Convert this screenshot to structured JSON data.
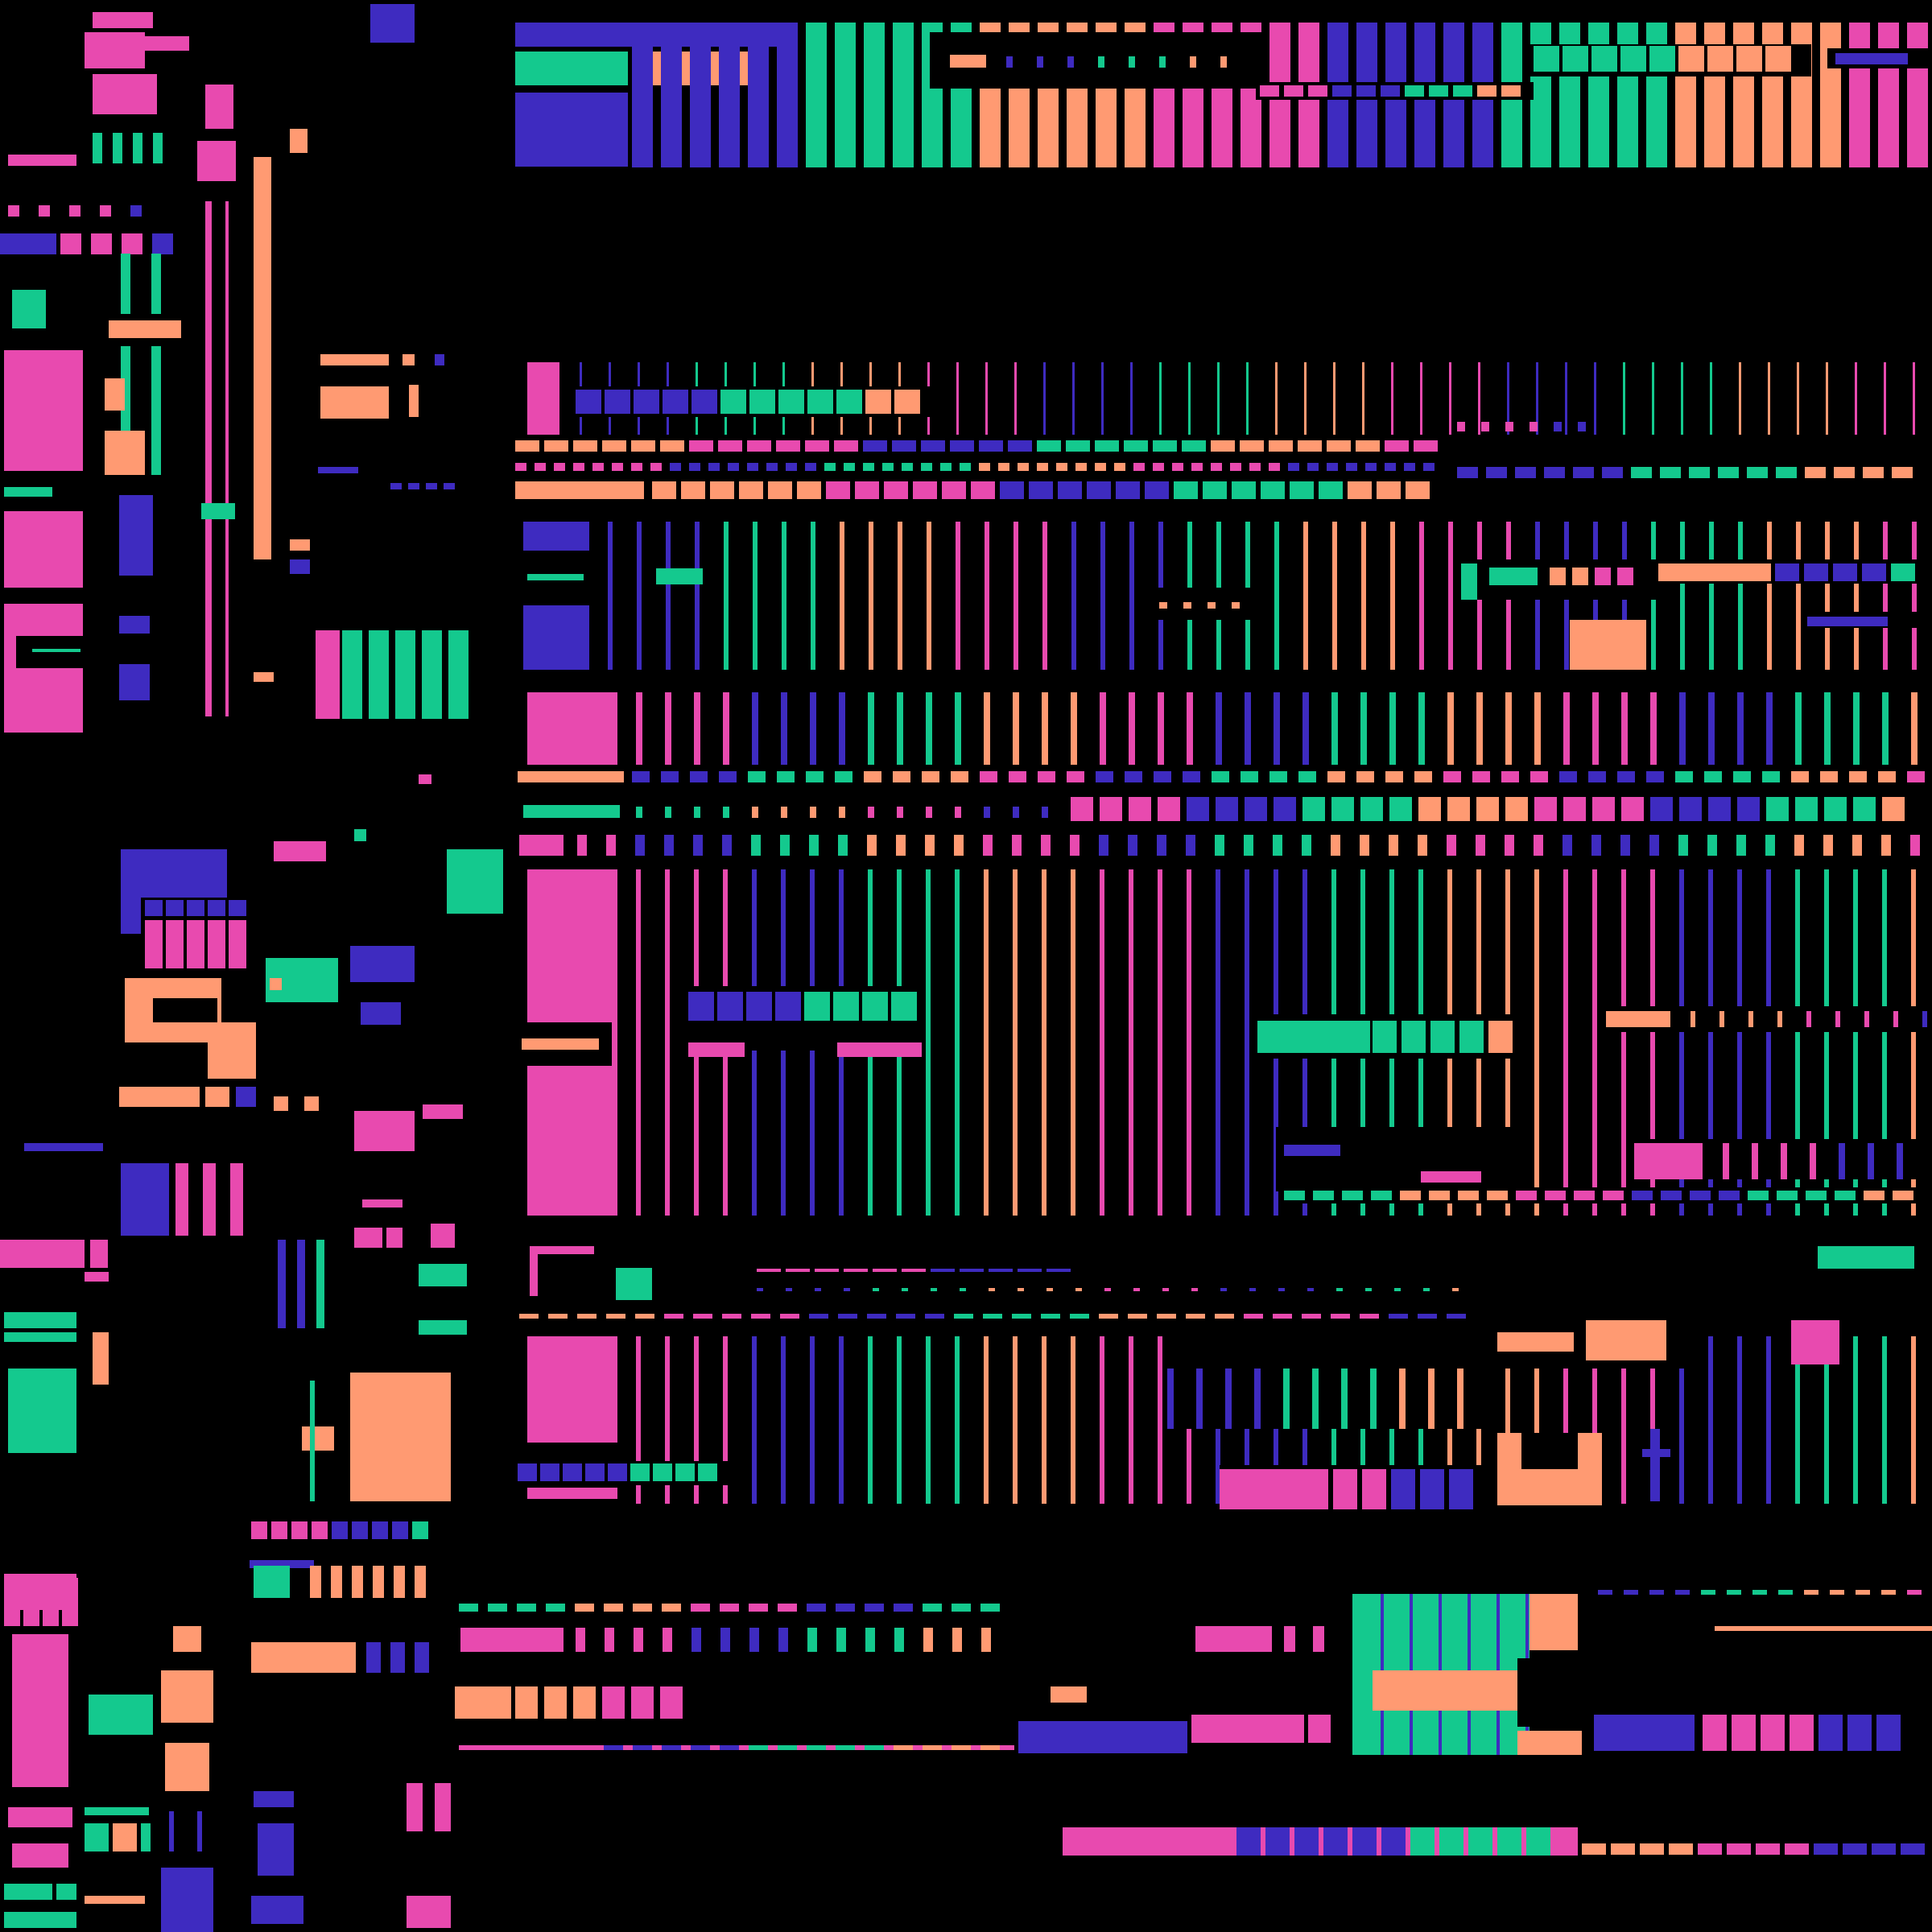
{
  "image": {
    "description_text": "",
    "background": "#000000"
  },
  "palette": {
    "pink": "#E84AAF",
    "indigo": "#3E2BC0",
    "green": "#14C98E",
    "salmon": "#FF9A72",
    "black": "#000000"
  },
  "regions": [
    "top-band",
    "upper-grid",
    "main-grid",
    "left-column",
    "lower-blocks",
    "bottom-row"
  ]
}
